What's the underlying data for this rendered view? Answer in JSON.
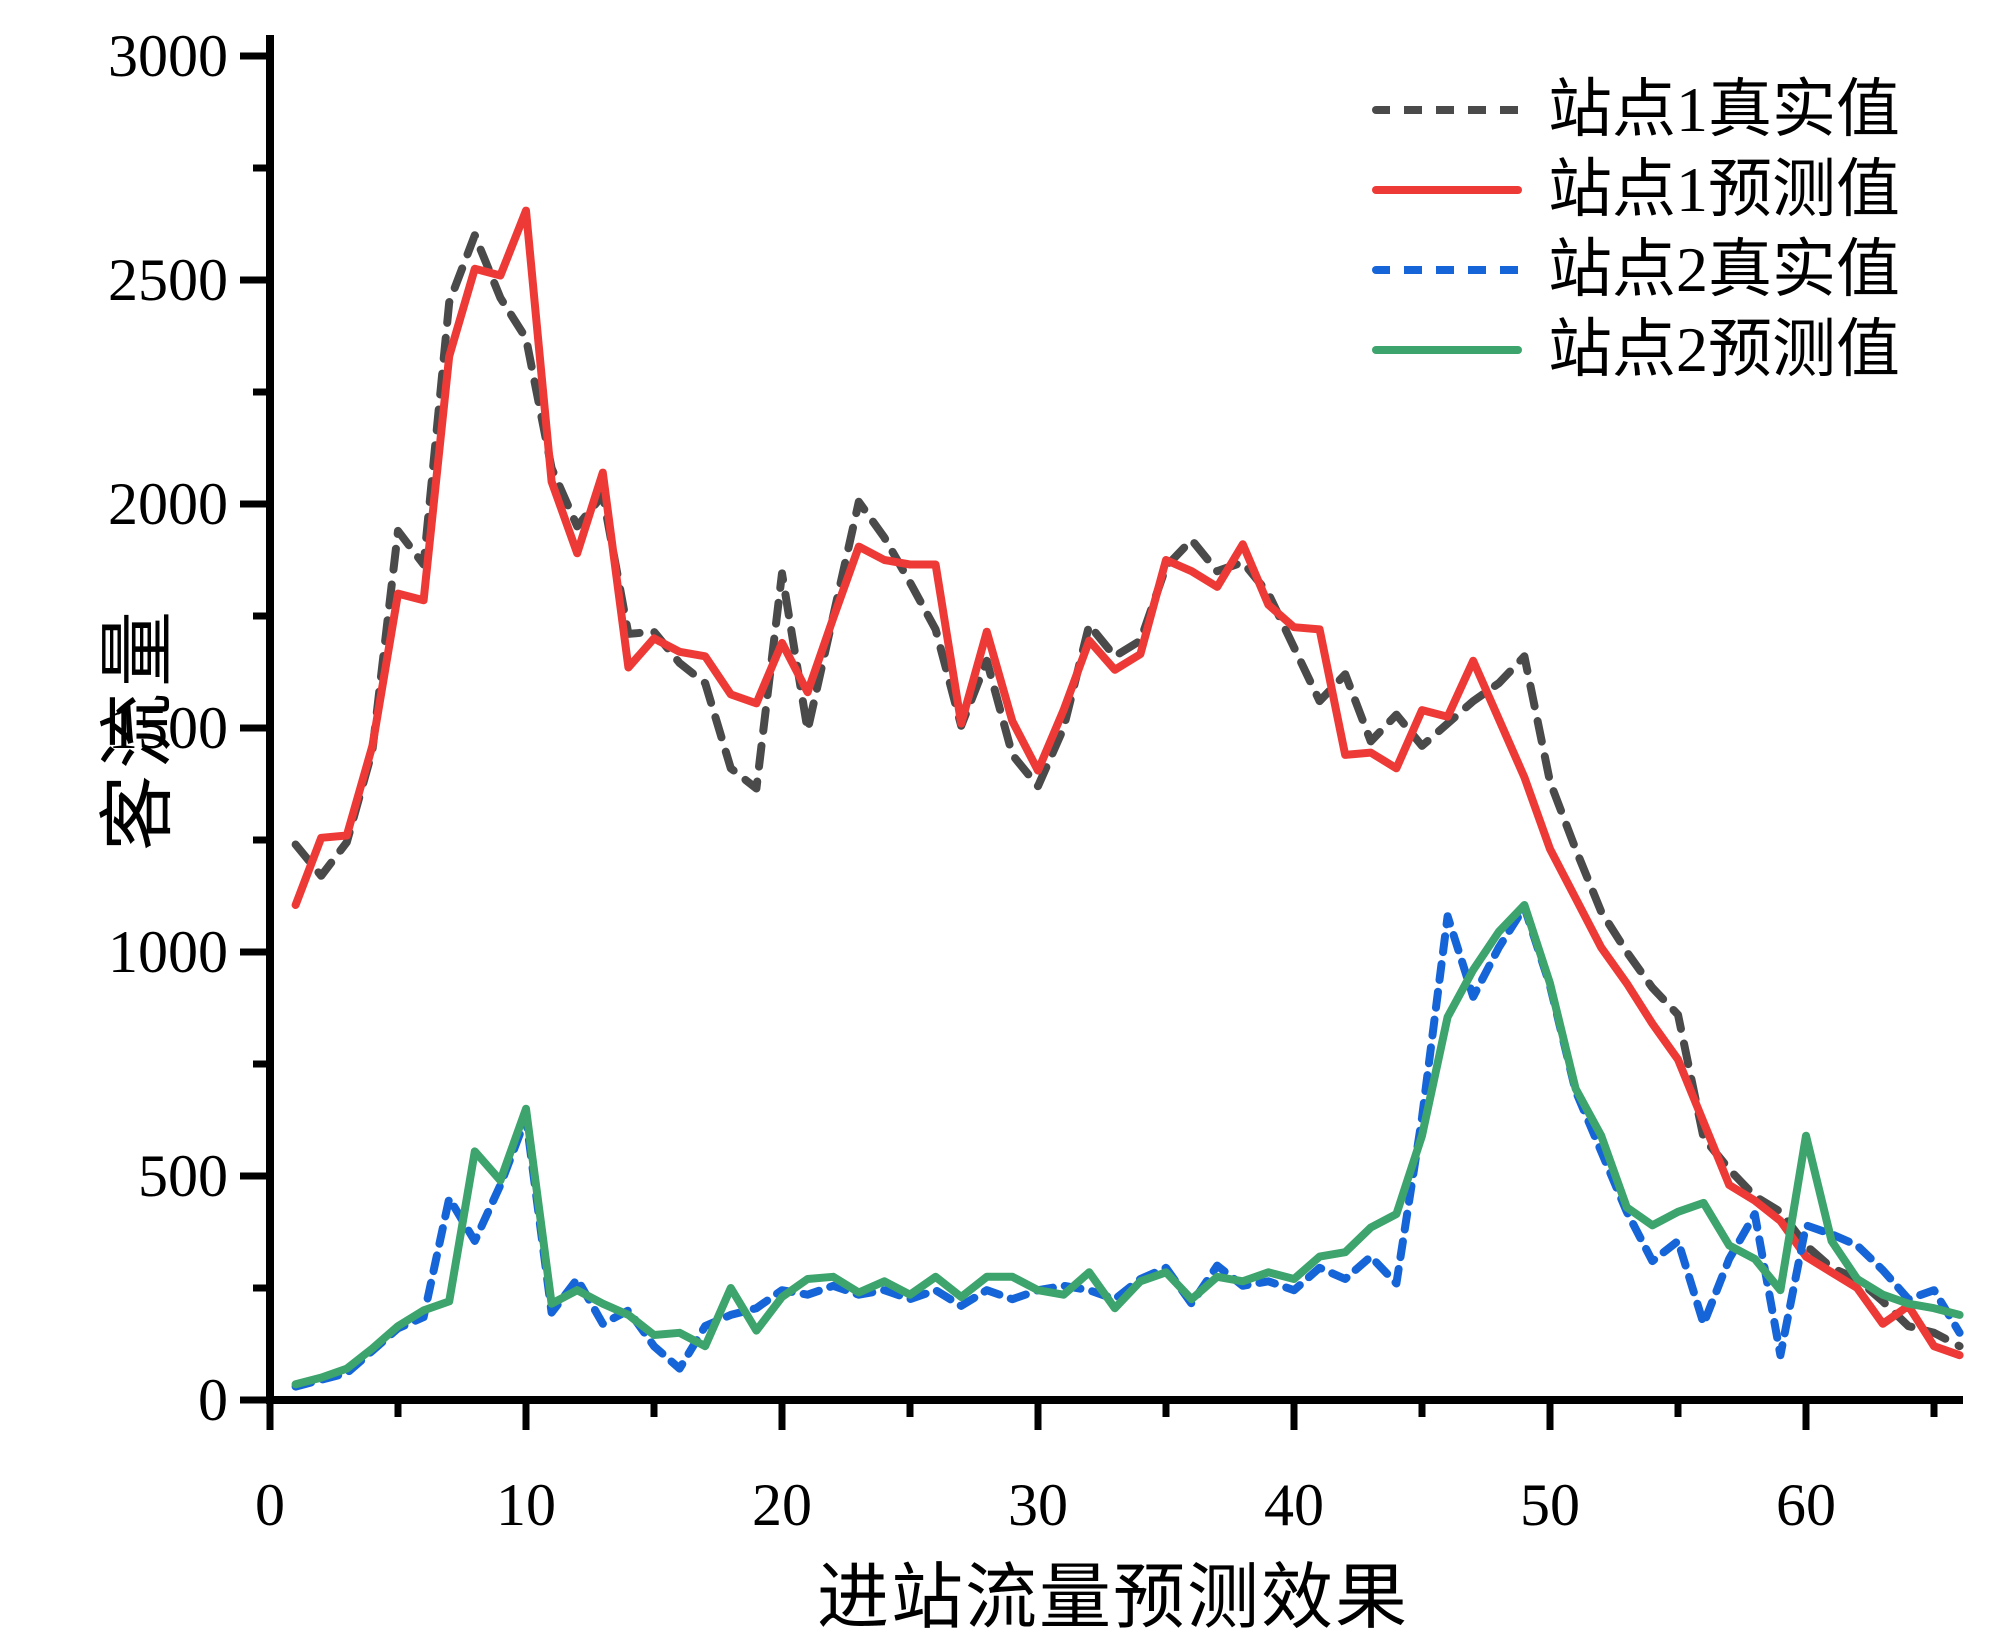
{
  "figure": {
    "y_axis_title": "客流量",
    "x_axis_title": "进站流量预测效果",
    "y_tick_labels": [
      "0",
      "500",
      "1000",
      "1500",
      "2000",
      "2500",
      "3000"
    ],
    "x_tick_labels": [
      "0",
      "10",
      "20",
      "30",
      "40",
      "50",
      "60"
    ]
  },
  "legend": {
    "position": "top-right",
    "items": [
      {
        "label": "站点1真实值",
        "color": "#4a4a4a",
        "style": "dashed"
      },
      {
        "label": "站点1预测值",
        "color": "#ee3a36",
        "style": "solid"
      },
      {
        "label": "站点2真实值",
        "color": "#1565d8",
        "style": "dashed"
      },
      {
        "label": "站点2预测值",
        "color": "#3ca46c",
        "style": "solid"
      }
    ]
  },
  "chart_data": {
    "type": "line",
    "title": "",
    "xlabel": "进站流量预测效果",
    "ylabel": "客流量",
    "xlim": [
      0,
      67
    ],
    "ylim": [
      0,
      3000
    ],
    "grid": false,
    "x_major_ticks": [
      0,
      10,
      20,
      30,
      40,
      50,
      60
    ],
    "x_minor_ticks": [
      5,
      15,
      25,
      35,
      45,
      55,
      65
    ],
    "y_major_ticks": [
      0,
      500,
      1000,
      1500,
      2000,
      2500,
      3000
    ],
    "y_minor_ticks": [
      250,
      750,
      1250,
      1750,
      2250,
      2750
    ],
    "x": [
      1,
      2,
      3,
      4,
      5,
      6,
      7,
      8,
      9,
      10,
      11,
      12,
      13,
      14,
      15,
      16,
      17,
      18,
      19,
      20,
      21,
      22,
      23,
      24,
      25,
      26,
      27,
      28,
      29,
      30,
      31,
      32,
      33,
      34,
      35,
      36,
      37,
      38,
      39,
      40,
      41,
      42,
      43,
      44,
      45,
      46,
      47,
      48,
      49,
      50,
      51,
      52,
      53,
      54,
      55,
      56,
      57,
      58,
      59,
      60,
      61,
      62,
      63,
      64,
      65,
      66
    ],
    "series": [
      {
        "name": "站点1真实值",
        "color": "#4a4a4a",
        "dash": "21 15",
        "values": [
          1240,
          1170,
          1245,
          1450,
          1940,
          1865,
          2450,
          2600,
          2460,
          2370,
          2080,
          1950,
          2020,
          1710,
          1715,
          1645,
          1600,
          1410,
          1365,
          1845,
          1495,
          1750,
          2005,
          1925,
          1825,
          1720,
          1505,
          1650,
          1440,
          1370,
          1500,
          1730,
          1660,
          1695,
          1860,
          1920,
          1850,
          1870,
          1800,
          1680,
          1560,
          1620,
          1470,
          1530,
          1460,
          1510,
          1560,
          1600,
          1660,
          1380,
          1230,
          1090,
          1000,
          920,
          860,
          585,
          515,
          455,
          420,
          345,
          295,
          270,
          220,
          165,
          150,
          120
        ]
      },
      {
        "name": "站点1预测值",
        "color": "#ee3a36",
        "dash": null,
        "values": [
          1105,
          1255,
          1260,
          1460,
          1800,
          1785,
          2330,
          2525,
          2510,
          2655,
          2050,
          1890,
          2070,
          1635,
          1700,
          1670,
          1660,
          1575,
          1555,
          1690,
          1580,
          1745,
          1905,
          1875,
          1865,
          1865,
          1510,
          1715,
          1515,
          1405,
          1540,
          1695,
          1630,
          1665,
          1875,
          1850,
          1815,
          1910,
          1775,
          1725,
          1720,
          1440,
          1445,
          1410,
          1540,
          1525,
          1650,
          1520,
          1390,
          1230,
          1120,
          1010,
          930,
          840,
          760,
          620,
          480,
          445,
          400,
          320,
          285,
          250,
          170,
          210,
          120,
          100
        ]
      },
      {
        "name": "站点2真实值",
        "color": "#1565d8",
        "dash": "16 12",
        "values": [
          30,
          45,
          60,
          110,
          160,
          185,
          450,
          355,
          480,
          630,
          195,
          270,
          170,
          200,
          120,
          70,
          165,
          190,
          205,
          245,
          235,
          255,
          235,
          245,
          225,
          245,
          210,
          245,
          225,
          245,
          255,
          245,
          225,
          270,
          295,
          215,
          300,
          255,
          265,
          245,
          295,
          270,
          320,
          260,
          630,
          1080,
          900,
          1010,
          1100,
          925,
          690,
          555,
          420,
          310,
          355,
          170,
          315,
          415,
          100,
          390,
          370,
          345,
          290,
          225,
          245,
          150
        ]
      },
      {
        "name": "站点2预测值",
        "color": "#3ca46c",
        "dash": null,
        "values": [
          35,
          50,
          70,
          115,
          165,
          200,
          220,
          555,
          490,
          650,
          215,
          245,
          215,
          190,
          145,
          150,
          120,
          250,
          155,
          230,
          270,
          275,
          240,
          265,
          235,
          275,
          230,
          275,
          275,
          245,
          235,
          285,
          205,
          265,
          285,
          225,
          275,
          265,
          285,
          270,
          320,
          330,
          385,
          415,
          590,
          855,
          960,
          1045,
          1105,
          930,
          695,
          590,
          430,
          390,
          420,
          440,
          345,
          315,
          245,
          590,
          355,
          270,
          235,
          215,
          205,
          190
        ]
      }
    ]
  }
}
